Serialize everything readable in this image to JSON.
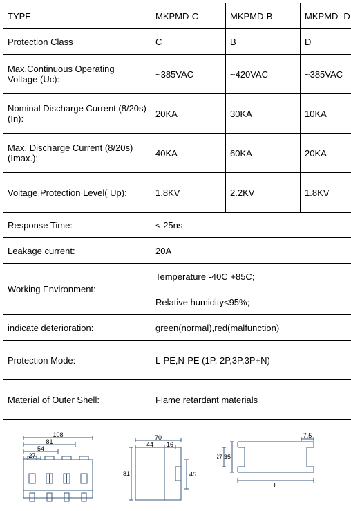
{
  "table": {
    "header": {
      "type": "TYPE",
      "c1": "MKPMD-C",
      "c2": "MKPMD-B",
      "c3": "MKPMD -D"
    },
    "rows": [
      {
        "label": "Protection Class",
        "c1": "C",
        "c2": "B",
        "c3": "D",
        "tall": false
      },
      {
        "label": "Max.Continuous Operating Voltage (Uc):",
        "c1": "~385VAC",
        "c2": "~420VAC",
        "c3": "~385VAC",
        "tall": true
      },
      {
        "label": "Nominal Discharge Current (8/20s) (In):",
        "c1": "20KA",
        "c2": "30KA",
        "c3": "10KA",
        "tall": true
      },
      {
        "label": "Max. Discharge Current (8/20s) (Imax.):",
        "c1": "40KA",
        "c2": "60KA",
        "c3": "20KA",
        "tall": true
      },
      {
        "label": "Voltage Protection Level( Up):",
        "c1": "1.8KV",
        "c2": "2.2KV",
        "c3": "1.8KV",
        "tall": true
      }
    ],
    "span_rows": [
      {
        "label": "Response Time:",
        "value": "< 25ns"
      },
      {
        "label": "Leakage current:",
        "value": "20A"
      }
    ],
    "working_env": {
      "label": "Working Environment:",
      "v1": "Temperature -40C +85C;",
      "v2": "Relative humidity<95%;"
    },
    "tail_rows": [
      {
        "label": "indicate deterioration:",
        "value": "green(normal),red(malfunction)"
      },
      {
        "label": "Protection Mode:",
        "value": "L-PE,N-PE (1P, 2P,3P,3P+N)",
        "tall": true
      },
      {
        "label": "Material of Outer Shell:",
        "value": "Flame retardant materials",
        "tall": true
      }
    ]
  },
  "diagrams": {
    "front": {
      "dim108": "108",
      "dim81": "81",
      "dim54": "54",
      "dim27": "27"
    },
    "side": {
      "dim70": "70",
      "dim44": "44",
      "dim16": "16",
      "dim81": "81",
      "dim45": "45"
    },
    "profile": {
      "dim75": "7.5",
      "dim35": "35",
      "dim27": "27",
      "dimL": "L"
    }
  },
  "style": {
    "line": "#3a5a7a",
    "text": "#000000"
  }
}
